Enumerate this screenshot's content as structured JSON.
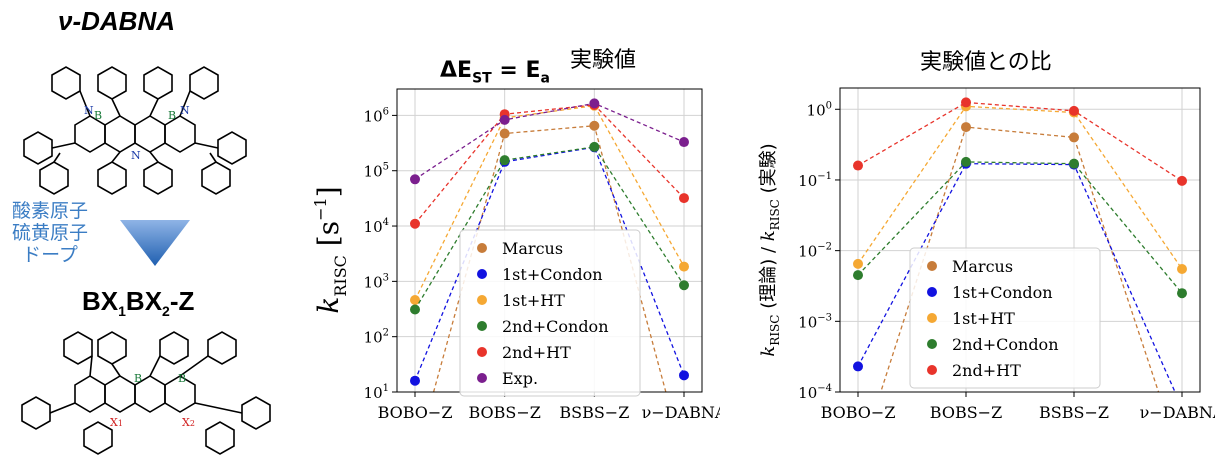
{
  "left_panel": {
    "top_title": "ν-DABNA",
    "arrow_label": [
      "酸素原子",
      "硫黄原子",
      "ドープ"
    ],
    "bottom_title": "BX1BX2-Z",
    "atom_labels": {
      "B": "B",
      "N": "N",
      "X1": "X1",
      "X2": "X2"
    },
    "arrow_color": "#2f6fc0"
  },
  "chart_data": [
    {
      "type": "line",
      "title": "ΔE_ST = E_a 実験値",
      "title_parts": {
        "main": "ΔE",
        "sub": "ST",
        "eq": " = E",
        "sub2": "a",
        "sup": "実験値"
      },
      "ylabel": "k_RISC [s^-1]",
      "ylabel_parts": {
        "k": "k",
        "sub": "RISC",
        "unit": "s",
        "exp": "−1"
      },
      "yscale": "log",
      "ylim": [
        10,
        3000000
      ],
      "categories": [
        "BOBO−Z",
        "BOBS−Z",
        "BSBS−Z",
        "ν−DABNA"
      ],
      "series": [
        {
          "name": "Marcus",
          "color": "#c77c3a",
          "values": [
            0.6,
            470000,
            650000,
            0.6
          ]
        },
        {
          "name": "1st+Condon",
          "color": "#1212e0",
          "values": [
            16,
            145000,
            265000,
            20
          ]
        },
        {
          "name": "1st+HT",
          "color": "#f5a833",
          "values": [
            460,
            900000,
            1500000,
            1850
          ]
        },
        {
          "name": "2nd+Condon",
          "color": "#2e7d2e",
          "values": [
            310,
            155000,
            270000,
            850
          ]
        },
        {
          "name": "2nd+HT",
          "color": "#e8342b",
          "values": [
            11000,
            1050000,
            1550000,
            32000
          ]
        },
        {
          "name": "Exp.",
          "color": "#7b1f8e",
          "values": [
            70000,
            830000,
            1650000,
            330000
          ]
        }
      ],
      "yticks": [
        "10^1",
        "10^2",
        "10^3",
        "10^4",
        "10^5",
        "10^6"
      ],
      "legend_position": "lower center",
      "grid": true
    },
    {
      "type": "line",
      "title": "実験値との比",
      "ylabel": "k_RISC (理論) / k_RISC (実験)",
      "ylabel_parts": {
        "k": "k",
        "sub": "RISC",
        "p1": " (理論) / ",
        "p2": " (実験)"
      },
      "yscale": "log",
      "ylim": [
        0.0001,
        2
      ],
      "categories": [
        "BOBO−Z",
        "BOBS−Z",
        "BSBS−Z",
        "ν−DABNA"
      ],
      "series": [
        {
          "name": "Marcus",
          "color": "#c77c3a",
          "values": [
            1e-05,
            0.56,
            0.4,
            1e-05
          ]
        },
        {
          "name": "1st+Condon",
          "color": "#1212e0",
          "values": [
            0.00023,
            0.17,
            0.165,
            6e-05
          ]
        },
        {
          "name": "1st+HT",
          "color": "#f5a833",
          "values": [
            0.0065,
            1.1,
            0.9,
            0.0055
          ]
        },
        {
          "name": "2nd+Condon",
          "color": "#2e7d2e",
          "values": [
            0.0045,
            0.18,
            0.17,
            0.0025
          ]
        },
        {
          "name": "2nd+HT",
          "color": "#e8342b",
          "values": [
            0.16,
            1.25,
            0.95,
            0.097
          ]
        }
      ],
      "yticks": [
        "10^0",
        "10^-1",
        "10^-2",
        "10^-3",
        "10^-4"
      ],
      "legend_position": "lower center",
      "grid": true
    }
  ]
}
